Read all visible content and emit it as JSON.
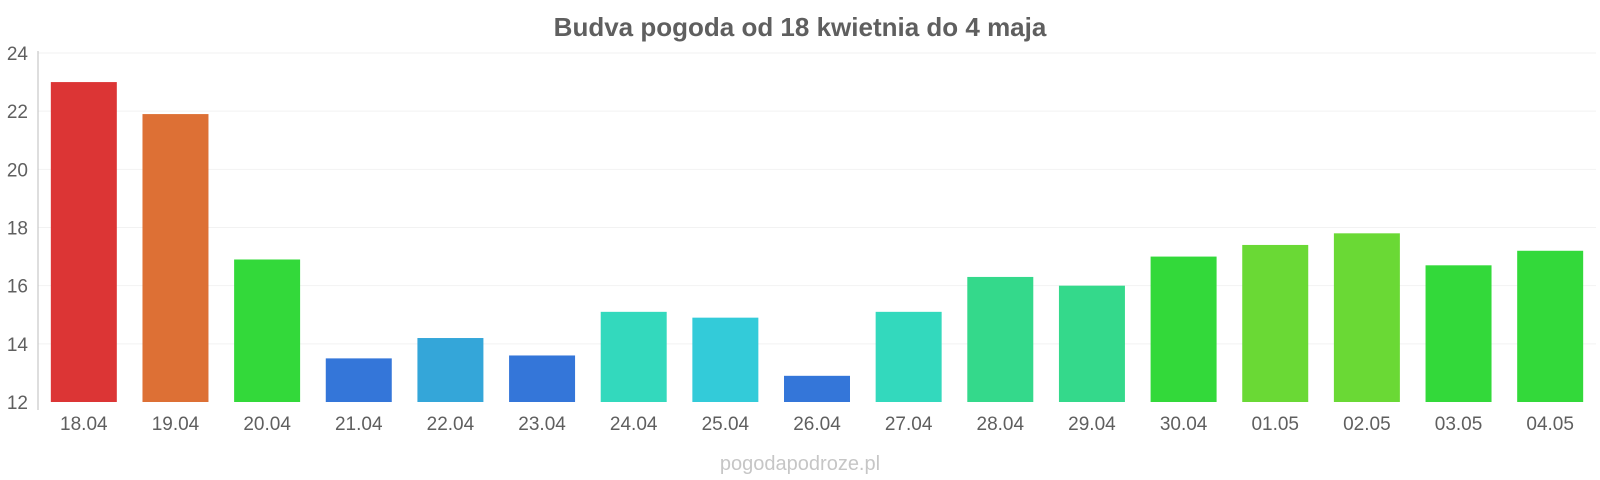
{
  "chart_data": {
    "type": "bar",
    "title": "Budva pogoda od 18 kwietnia do 4 maja",
    "xlabel": "",
    "ylabel": "",
    "categories": [
      "18.04",
      "19.04",
      "20.04",
      "21.04",
      "22.04",
      "23.04",
      "24.04",
      "25.04",
      "26.04",
      "27.04",
      "28.04",
      "29.04",
      "30.04",
      "01.05",
      "02.05",
      "03.05",
      "04.05"
    ],
    "values": [
      23.0,
      21.9,
      16.9,
      13.5,
      14.2,
      13.6,
      15.1,
      14.9,
      12.9,
      15.1,
      16.3,
      16.0,
      17.0,
      17.4,
      17.8,
      16.7,
      17.2
    ],
    "bar_colors": [
      "#dc3535",
      "#dd7035",
      "#33d93a",
      "#3476d9",
      "#34a6d9",
      "#3476d9",
      "#33d9bd",
      "#33cbd9",
      "#3476d9",
      "#33d9bd",
      "#34d98b",
      "#34d98b",
      "#33d93a",
      "#6ad935",
      "#6ad935",
      "#33d93a",
      "#33d93a"
    ],
    "ylim": [
      12,
      24
    ],
    "yticks": [
      "12",
      "14",
      "16",
      "18",
      "20",
      "22",
      "24"
    ],
    "grid": true,
    "legend": "none"
  },
  "watermark": "pogodapodroze.pl"
}
